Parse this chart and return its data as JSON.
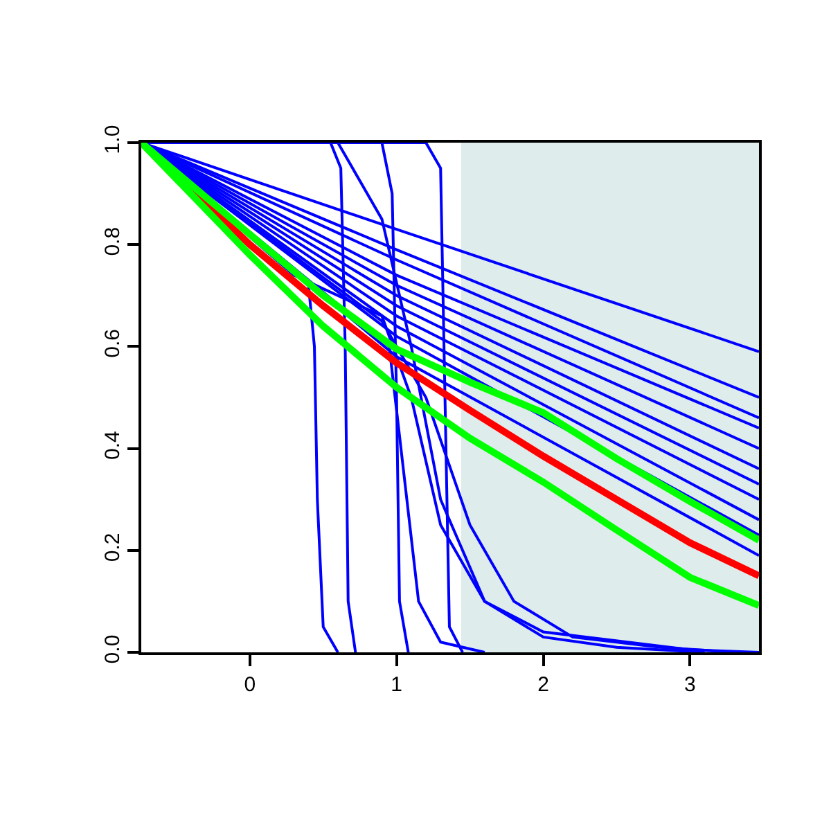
{
  "chart_data": {
    "type": "line",
    "xlim": [
      -0.74,
      3.47
    ],
    "ylim": [
      0,
      1
    ],
    "xticks": [
      0,
      1,
      2,
      3
    ],
    "yticks": [
      {
        "value": 0,
        "label": "0.0"
      },
      {
        "value": 0.2,
        "label": "0.2"
      },
      {
        "value": 0.4,
        "label": "0.4"
      },
      {
        "value": 0.6,
        "label": "0.6"
      },
      {
        "value": 0.8,
        "label": "0.8"
      },
      {
        "value": 1,
        "label": "1.0"
      }
    ],
    "grid": false,
    "marker": "none",
    "line_style": "solid",
    "bands": [
      {
        "axis": "x",
        "from": 1.44,
        "to": 3.47,
        "color": "#deeceb"
      }
    ],
    "series": [
      {
        "color": "#0000ff",
        "x": [
          -0.74,
          1,
          3.47
        ],
        "values": [
          1,
          0.83,
          0.59
        ]
      },
      {
        "color": "#0000ff",
        "x": [
          -0.74,
          1,
          3.47
        ],
        "values": [
          1,
          0.79,
          0.5
        ]
      },
      {
        "color": "#0000ff",
        "x": [
          -0.74,
          1,
          3.47
        ],
        "values": [
          1,
          0.77,
          0.46
        ]
      },
      {
        "color": "#0000ff",
        "x": [
          -0.74,
          1,
          3.47
        ],
        "values": [
          1,
          0.74,
          0.44
        ]
      },
      {
        "color": "#0000ff",
        "x": [
          -0.74,
          1,
          3.47
        ],
        "values": [
          1,
          0.72,
          0.4
        ]
      },
      {
        "color": "#0000ff",
        "x": [
          -0.74,
          1,
          3.47
        ],
        "values": [
          1,
          0.7,
          0.36
        ]
      },
      {
        "color": "#0000ff",
        "x": [
          -0.74,
          1,
          3.47
        ],
        "values": [
          1,
          0.68,
          0.33
        ]
      },
      {
        "color": "#0000ff",
        "x": [
          -0.74,
          1,
          3.47
        ],
        "values": [
          1,
          0.66,
          0.3
        ]
      },
      {
        "color": "#0000ff",
        "x": [
          -0.74,
          1,
          3.47
        ],
        "values": [
          1,
          0.64,
          0.26
        ]
      },
      {
        "color": "#0000ff",
        "x": [
          -0.74,
          1,
          3.47
        ],
        "values": [
          1,
          0.62,
          0.23
        ]
      },
      {
        "color": "#0000ff",
        "x": [
          -0.74,
          1,
          3.47
        ],
        "values": [
          1,
          0.58,
          0.19
        ]
      },
      {
        "color": "#0000ff",
        "x": [
          -0.74,
          0.4,
          0.44,
          0.46,
          0.5,
          0.6
        ],
        "values": [
          1,
          0.72,
          0.6,
          0.3,
          0.05,
          0
        ]
      },
      {
        "color": "#0000ff",
        "x": [
          -0.74,
          0.55,
          0.62,
          0.65,
          0.67,
          0.72
        ],
        "values": [
          1,
          1,
          0.95,
          0.6,
          0.1,
          0
        ]
      },
      {
        "color": "#0000ff",
        "x": [
          -0.74,
          0.9,
          0.97,
          1,
          1.02,
          1.08
        ],
        "values": [
          1,
          1,
          0.9,
          0.5,
          0.1,
          0
        ]
      },
      {
        "color": "#0000ff",
        "x": [
          -0.74,
          1.2,
          1.3,
          1.33,
          1.36,
          1.45
        ],
        "values": [
          1,
          1,
          0.95,
          0.5,
          0.05,
          0
        ]
      },
      {
        "color": "#0000ff",
        "x": [
          -0.74,
          0.6,
          0.9,
          1.1,
          1.3,
          1.6,
          2,
          2.5,
          3.1
        ],
        "values": [
          1,
          1,
          0.85,
          0.6,
          0.3,
          0.1,
          0.03,
          0.01,
          0
        ]
      },
      {
        "color": "#0000ff",
        "x": [
          -0.74,
          0.3,
          0.9,
          1.1,
          1.3,
          1.6,
          2,
          3,
          3.47
        ],
        "values": [
          1,
          0.74,
          0.66,
          0.5,
          0.25,
          0.1,
          0.04,
          0.005,
          0
        ]
      },
      {
        "color": "#0000ff",
        "x": [
          -0.74,
          0.9,
          1.2,
          1.5,
          1.8,
          2.2,
          2.8,
          3.3
        ],
        "values": [
          1,
          0.65,
          0.5,
          0.25,
          0.1,
          0.03,
          0.01,
          0
        ]
      },
      {
        "color": "#0000ff",
        "x": [
          -0.74,
          0.95,
          1.05,
          1.15,
          1.3,
          1.6
        ],
        "values": [
          1,
          0.6,
          0.35,
          0.1,
          0.02,
          0
        ]
      },
      {
        "color": "#ff0000",
        "x": [
          -0.74,
          0,
          0.5,
          1,
          1.5,
          2,
          2.5,
          3,
          3.47
        ],
        "values": [
          1,
          0.8,
          0.68,
          0.568,
          0.475,
          0.385,
          0.3,
          0.215,
          0.15
        ]
      },
      {
        "color": "#00ff00",
        "x": [
          -0.74,
          0,
          0.5,
          1,
          1.5,
          2,
          2.5,
          3,
          3.47
        ],
        "values": [
          1,
          0.82,
          0.7,
          0.595,
          0.53,
          0.47,
          0.38,
          0.296,
          0.22
        ]
      },
      {
        "color": "#00ff00",
        "x": [
          -0.74,
          0,
          0.5,
          1,
          1.5,
          2,
          2.5,
          3,
          3.47
        ],
        "values": [
          1,
          0.78,
          0.64,
          0.52,
          0.42,
          0.334,
          0.24,
          0.147,
          0.092
        ]
      }
    ]
  }
}
